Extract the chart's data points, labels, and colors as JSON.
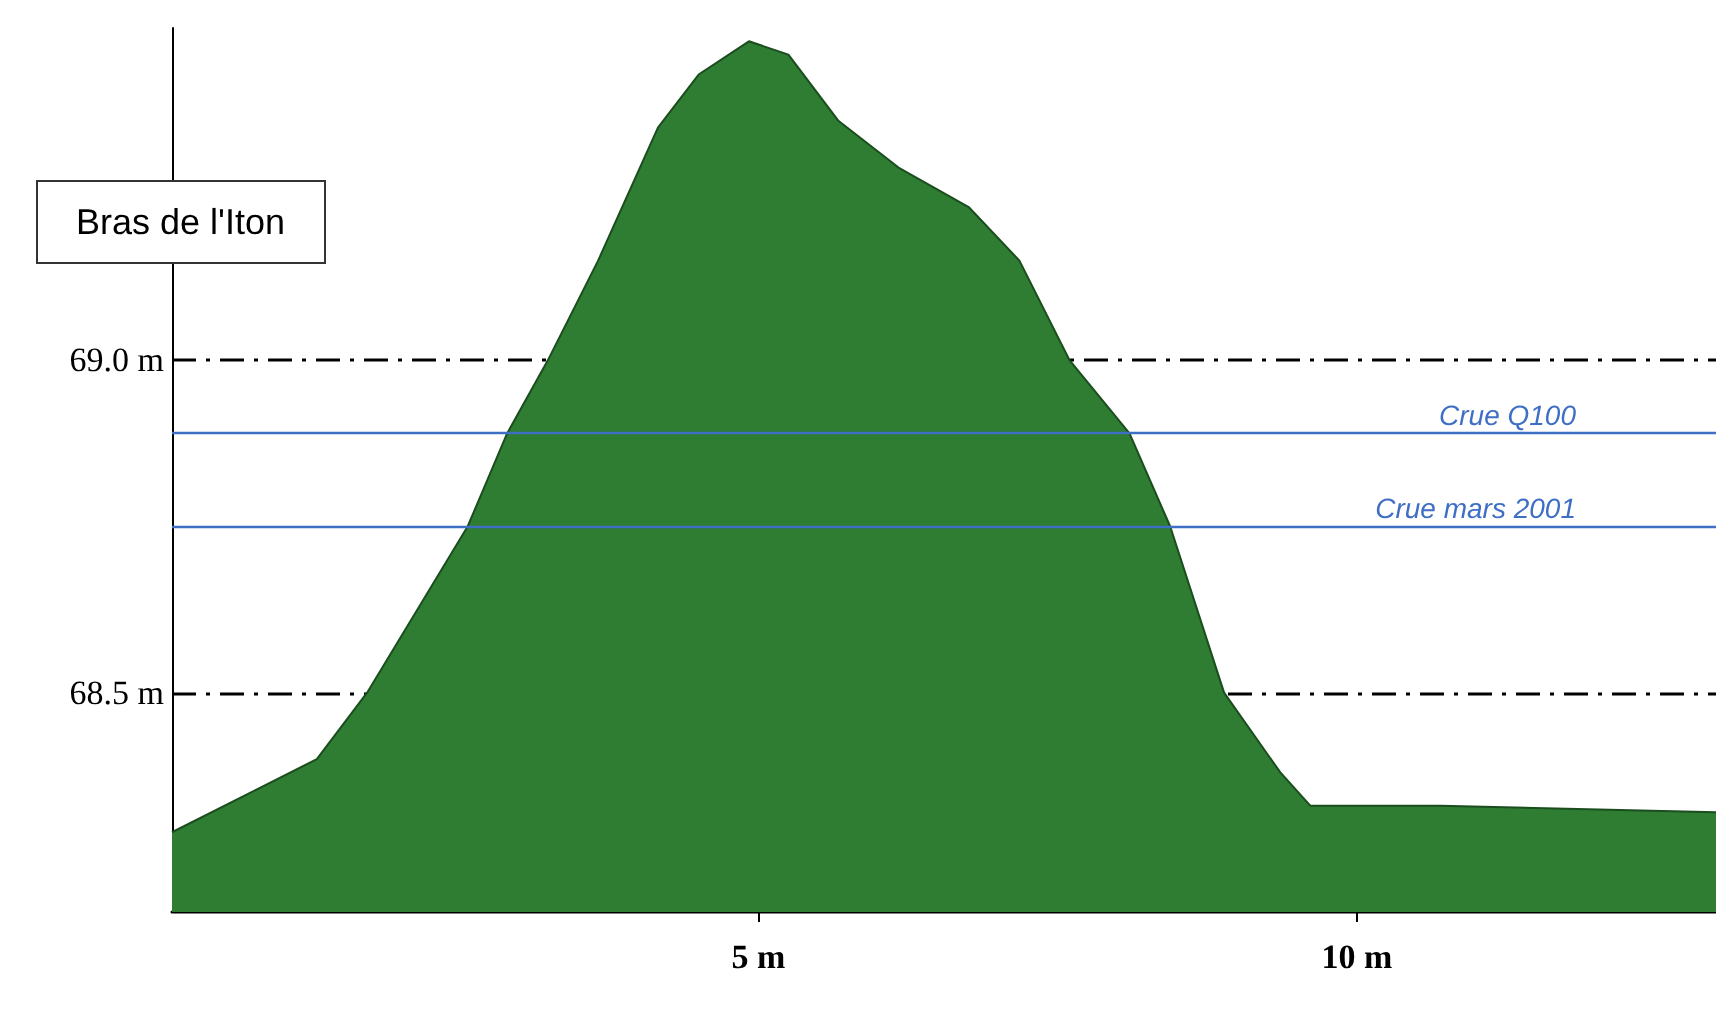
{
  "chart_data": {
    "type": "area",
    "title": "Bras de l'Iton",
    "x": [
      0.1,
      1.31,
      1.73,
      2.57,
      2.9,
      3.24,
      3.66,
      4.16,
      4.5,
      4.92,
      5.25,
      5.67,
      6.17,
      6.76,
      7.18,
      7.6,
      8.1,
      8.44,
      8.89,
      9.36,
      9.61,
      10.7,
      13.0
    ],
    "series": [
      {
        "color": "#2e7d32",
        "values": [
          68.29,
          68.4,
          68.5,
          68.75,
          68.89,
          69.0,
          69.15,
          69.35,
          69.43,
          69.48,
          69.46,
          69.36,
          69.29,
          69.23,
          69.15,
          69.0,
          68.89,
          68.75,
          68.5,
          68.38,
          68.33,
          68.33,
          68.32
        ]
      }
    ],
    "xlim": [
      0.1,
      13
    ],
    "xticks": [
      {
        "value": 5,
        "label": "5 m"
      },
      {
        "value": 10,
        "label": "10 m"
      }
    ],
    "yticks": [
      {
        "value": 68.5,
        "label": "68.5 m"
      },
      {
        "value": 69.0,
        "label": "69.0 m"
      }
    ],
    "ylim": [
      68.17,
      69.5
    ],
    "grid": "y",
    "ref_lines": [
      {
        "axis": "y",
        "value": 68.89,
        "label": "Crue Q100",
        "color": "#3f6fc4"
      },
      {
        "axis": "y",
        "value": 68.75,
        "label": "Crue mars 2001",
        "color": "#3f6fc4"
      }
    ]
  }
}
